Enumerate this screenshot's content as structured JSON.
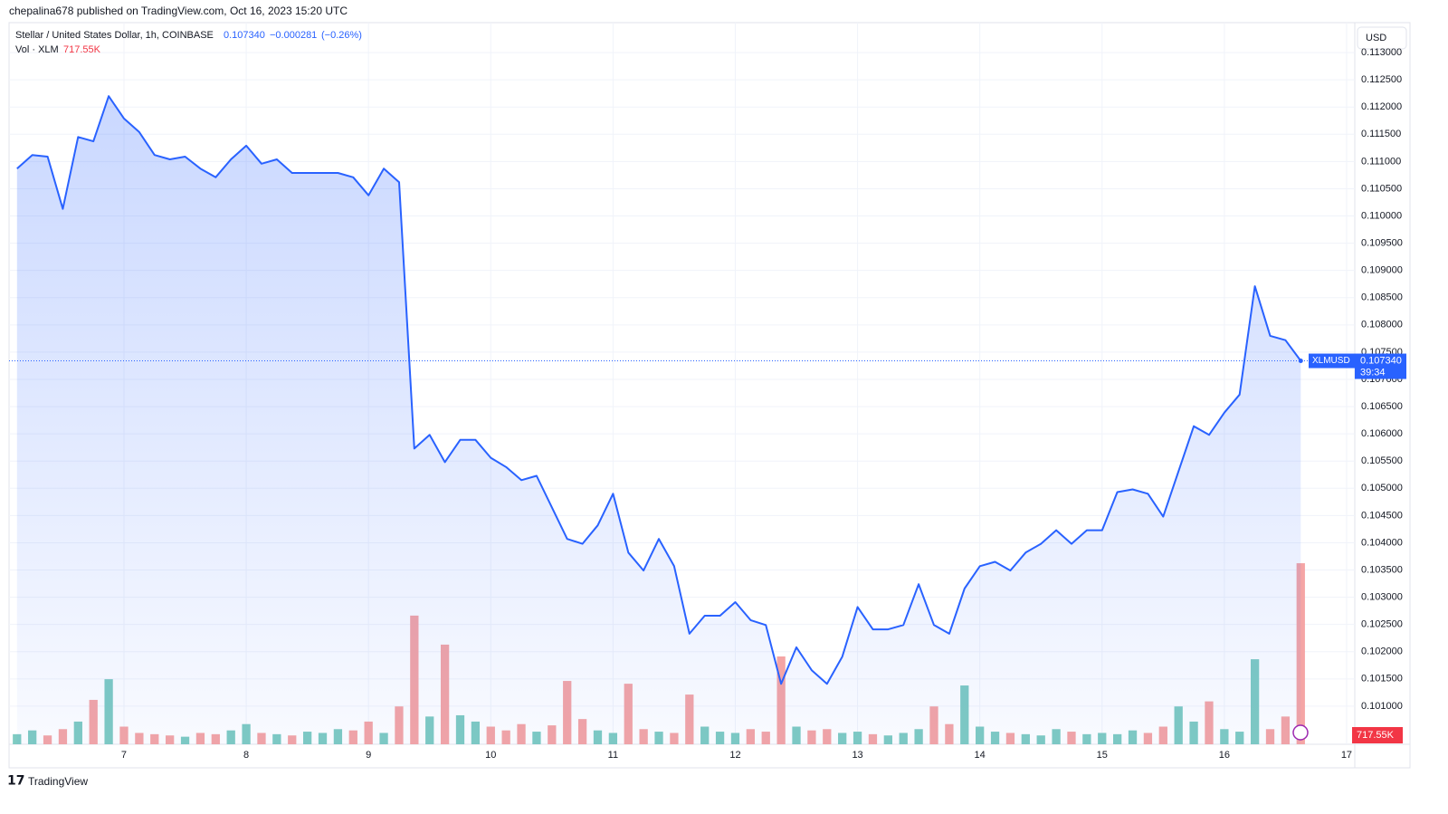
{
  "header": {
    "published": "chepalina678 published on TradingView.com, Oct 16, 2023 15:20 UTC",
    "footer": "TradingView",
    "currency": "USD"
  },
  "chart_data": {
    "type": "area",
    "title": "Stellar / United States Dollar, 1h, COINBASE",
    "price_label": "0.107340",
    "change_label": "−0.000281",
    "change_pct_label": "(−0.26%)",
    "symbol": "XLMUSD",
    "countdown": "39:34",
    "last_price": {
      "value": 0.10734,
      "label": "0.107340"
    },
    "color": "#2962ff",
    "xlim": [
      6.06,
      17.067
    ],
    "xticks": [
      7,
      8,
      9,
      10,
      11,
      12,
      13,
      14,
      15,
      16,
      17
    ],
    "ylim": [
      0.1003,
      0.11355
    ],
    "yticks": [
      {
        "value": 0.101,
        "label": "0.101000"
      },
      {
        "value": 0.1015,
        "label": "0.101500"
      },
      {
        "value": 0.102,
        "label": "0.102000"
      },
      {
        "value": 0.1025,
        "label": "0.102500"
      },
      {
        "value": 0.103,
        "label": "0.103000"
      },
      {
        "value": 0.1035,
        "label": "0.103500"
      },
      {
        "value": 0.104,
        "label": "0.104000"
      },
      {
        "value": 0.1045,
        "label": "0.104500"
      },
      {
        "value": 0.105,
        "label": "0.105000"
      },
      {
        "value": 0.1055,
        "label": "0.105500"
      },
      {
        "value": 0.106,
        "label": "0.106000"
      },
      {
        "value": 0.1065,
        "label": "0.106500"
      },
      {
        "value": 0.107,
        "label": "0.107000"
      },
      {
        "value": 0.1075,
        "label": "0.107500"
      },
      {
        "value": 0.108,
        "label": "0.108000"
      },
      {
        "value": 0.1085,
        "label": "0.108500"
      },
      {
        "value": 0.109,
        "label": "0.109000"
      },
      {
        "value": 0.1095,
        "label": "0.109500"
      },
      {
        "value": 0.11,
        "label": "0.110000"
      },
      {
        "value": 0.1105,
        "label": "0.110500"
      },
      {
        "value": 0.111,
        "label": "0.111000"
      },
      {
        "value": 0.1115,
        "label": "0.111500"
      },
      {
        "value": 0.112,
        "label": "0.112000"
      },
      {
        "value": 0.1125,
        "label": "0.112500"
      },
      {
        "value": 0.113,
        "label": "0.113000"
      }
    ],
    "grid": true,
    "x": [
      6.125,
      6.25,
      6.375,
      6.5,
      6.625,
      6.75,
      6.875,
      7,
      7.125,
      7.25,
      7.375,
      7.5,
      7.625,
      7.75,
      7.875,
      8,
      8.125,
      8.25,
      8.375,
      8.5,
      8.625,
      8.75,
      8.875,
      9,
      9.125,
      9.25,
      9.375,
      9.5,
      9.625,
      9.75,
      9.875,
      10,
      10.125,
      10.25,
      10.375,
      10.5,
      10.625,
      10.75,
      10.875,
      11,
      11.125,
      11.25,
      11.375,
      11.5,
      11.625,
      11.75,
      11.875,
      12,
      12.125,
      12.25,
      12.375,
      12.5,
      12.625,
      12.75,
      12.875,
      13,
      13.125,
      13.25,
      13.375,
      13.5,
      13.625,
      13.75,
      13.875,
      14,
      14.125,
      14.25,
      14.375,
      14.5,
      14.625,
      14.75,
      14.875,
      15,
      15.125,
      15.25,
      15.375,
      15.5,
      15.625,
      15.75,
      15.875,
      16,
      16.125,
      16.25,
      16.375,
      16.5,
      16.625
    ],
    "values": [
      0.11087,
      0.11112,
      0.11109,
      0.11013,
      0.11145,
      0.11137,
      0.1122,
      0.11179,
      0.11154,
      0.11112,
      0.11104,
      0.11109,
      0.11087,
      0.11071,
      0.11104,
      0.11129,
      0.11096,
      0.11104,
      0.11079,
      0.11079,
      0.11079,
      0.11079,
      0.11071,
      0.11038,
      0.11087,
      0.11062,
      0.10573,
      0.10598,
      0.10548,
      0.10589,
      0.10589,
      0.10556,
      0.10539,
      0.10515,
      0.10523,
      0.10465,
      0.10407,
      0.10398,
      0.10432,
      0.1049,
      0.10382,
      0.10349,
      0.10407,
      0.10357,
      0.10233,
      0.10266,
      0.10266,
      0.10291,
      0.10258,
      0.10249,
      0.10141,
      0.10208,
      0.10166,
      0.10141,
      0.10191,
      0.10282,
      0.10241,
      0.10241,
      0.10249,
      0.10324,
      0.10249,
      0.10233,
      0.10316,
      0.10357,
      0.10365,
      0.10349,
      0.10382,
      0.10398,
      0.10423,
      0.10398,
      0.10423,
      0.10423,
      0.10493,
      0.10498,
      0.1049,
      0.10448,
      0.10531,
      0.10614,
      0.10598,
      0.10639,
      0.10672,
      0.10871,
      0.1078,
      0.10772,
      0.10734
    ],
    "volume": {
      "name": "Vol · XLM",
      "last_label": "717.55K",
      "up_color": "#7fcbc2",
      "down_color": "#f5a5a5",
      "vlim": [
        0,
        2860000
      ],
      "values": [
        40000,
        55000,
        35000,
        60000,
        90000,
        176000,
        258000,
        70000,
        45000,
        40000,
        35000,
        30000,
        45000,
        40000,
        55000,
        80000,
        45000,
        40000,
        35000,
        50000,
        45000,
        60000,
        55000,
        90000,
        45000,
        150000,
        510000,
        110000,
        395000,
        115000,
        90000,
        70000,
        55000,
        80000,
        50000,
        75000,
        251000,
        100000,
        55000,
        45000,
        240000,
        60000,
        50000,
        45000,
        197000,
        70000,
        50000,
        45000,
        60000,
        50000,
        348000,
        70000,
        55000,
        60000,
        45000,
        50000,
        40000,
        35000,
        45000,
        60000,
        150000,
        80000,
        233000,
        70000,
        50000,
        45000,
        40000,
        35000,
        60000,
        50000,
        40000,
        45000,
        40000,
        55000,
        45000,
        70000,
        150000,
        90000,
        170000,
        60000,
        50000,
        337000,
        60000,
        110000,
        717550
      ]
    }
  }
}
